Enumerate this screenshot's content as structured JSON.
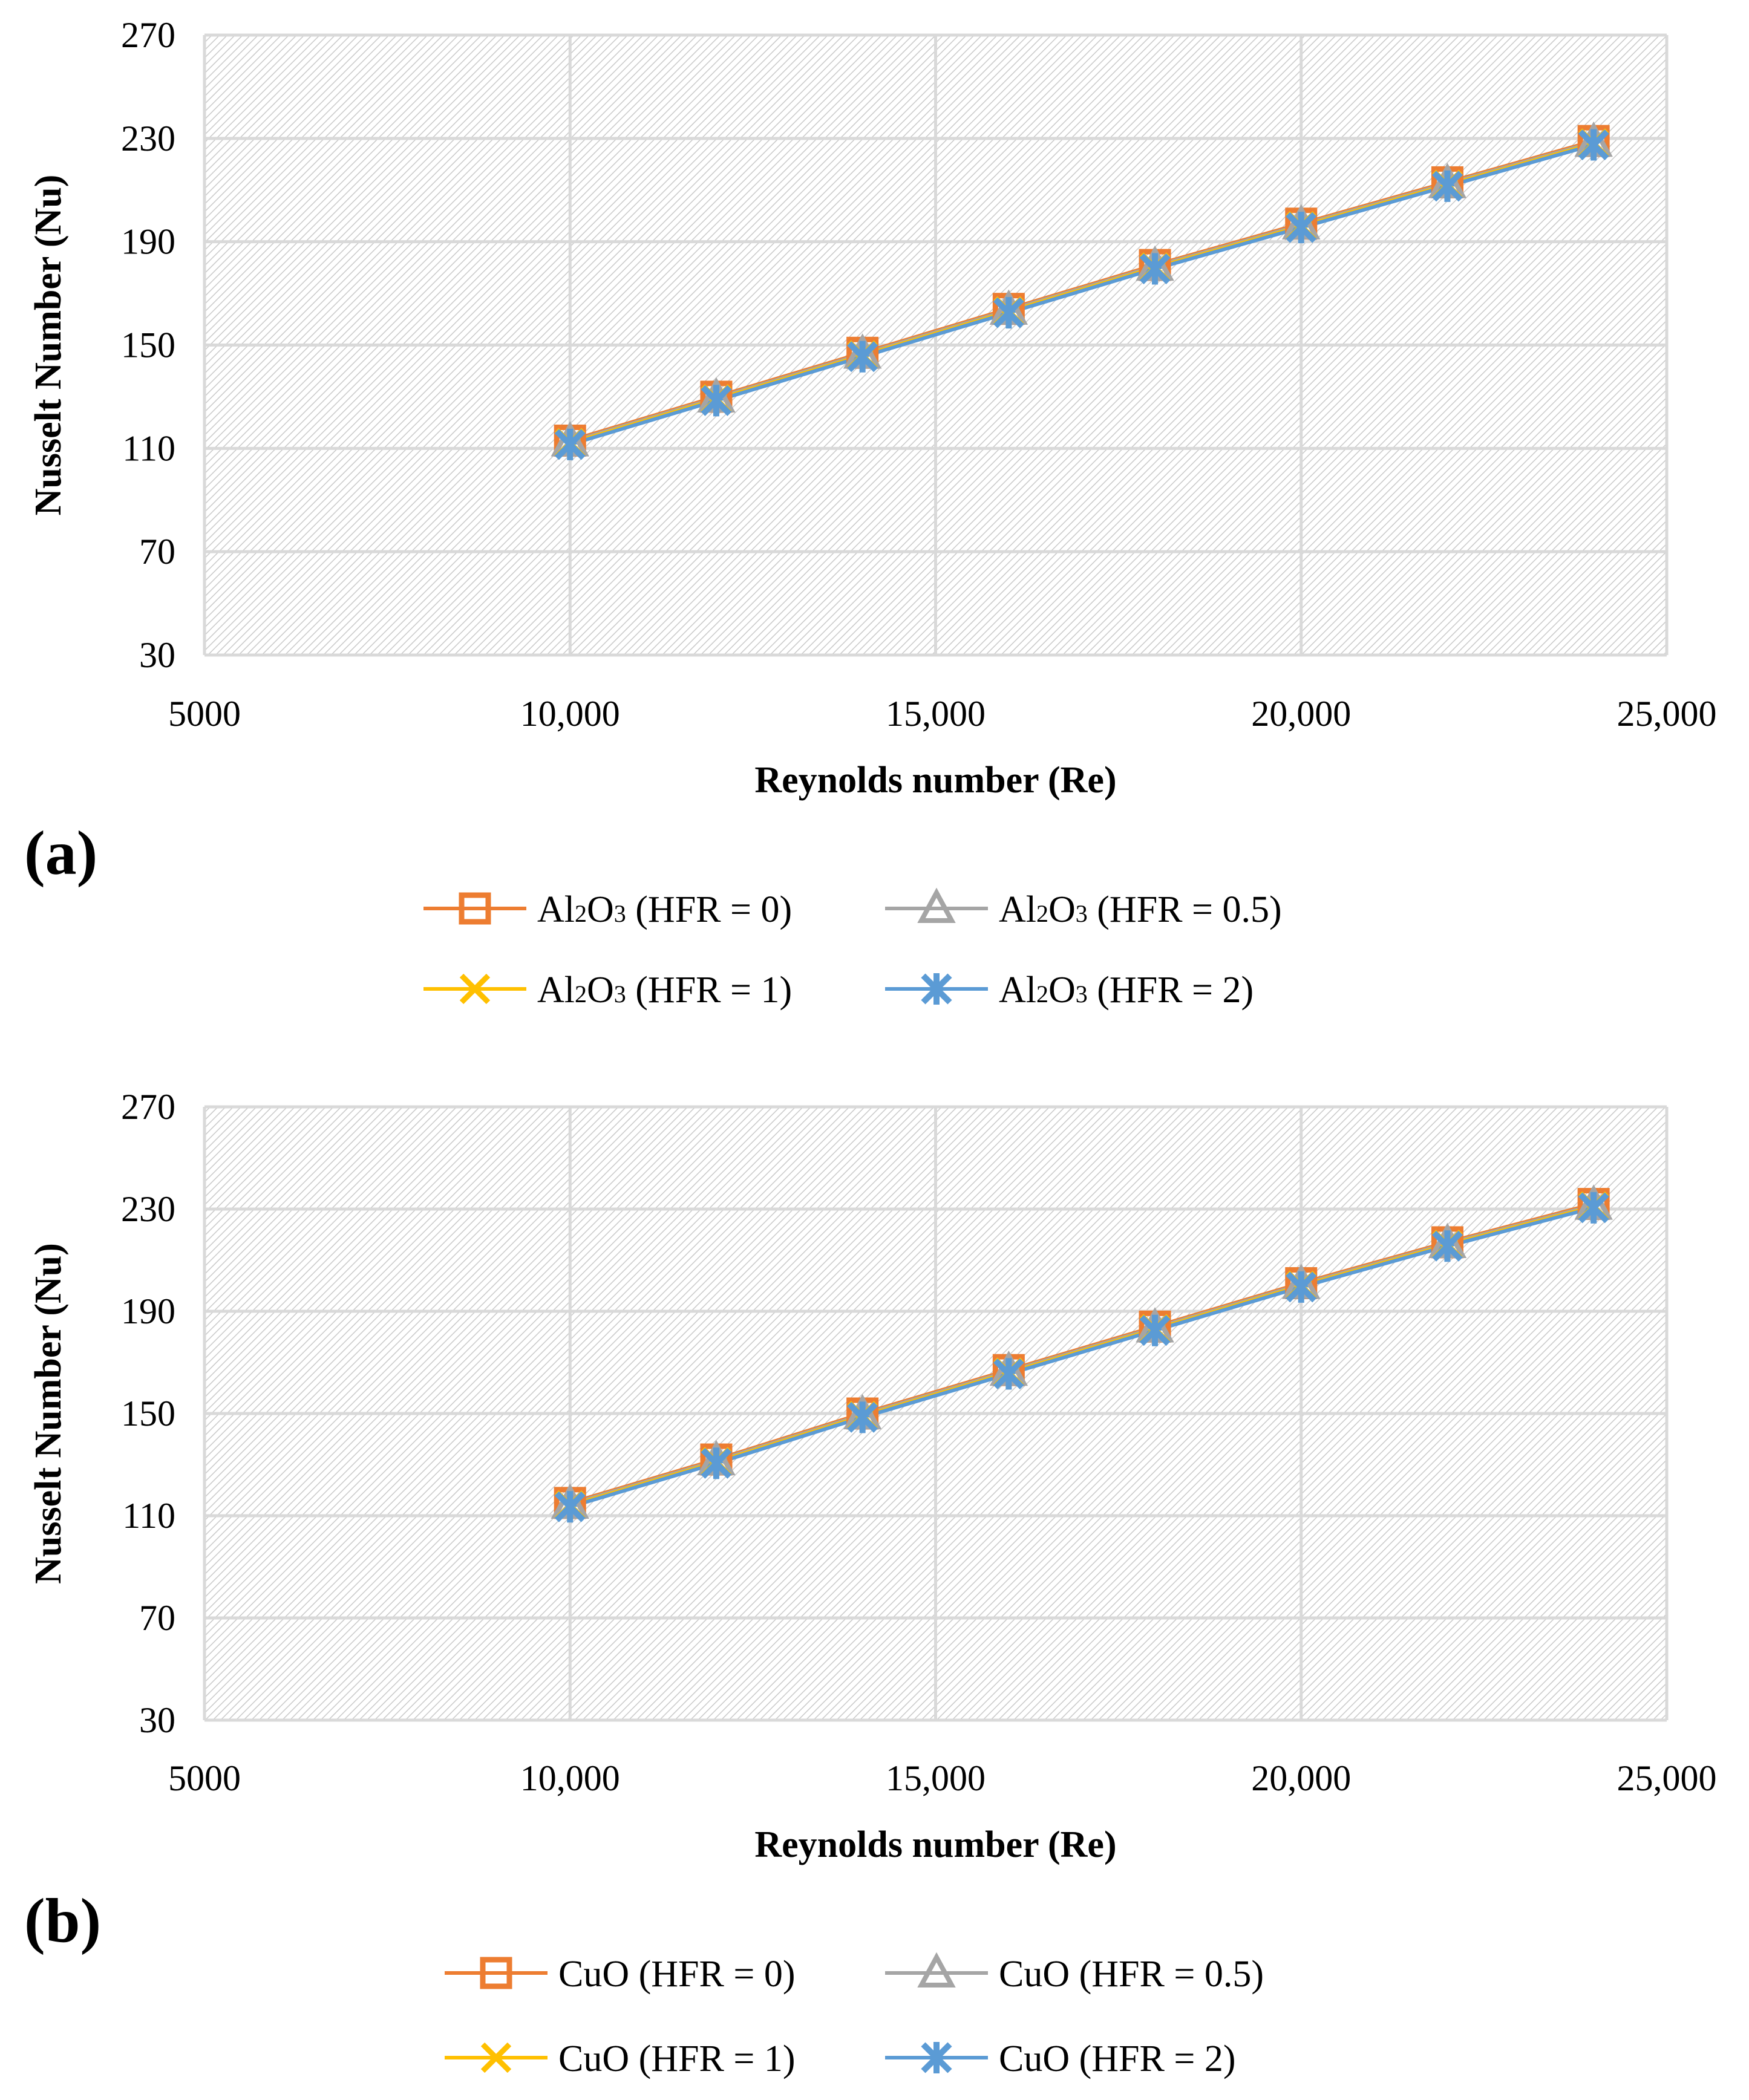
{
  "chart_data": [
    {
      "type": "line",
      "panel_label": "(a)",
      "xlabel": "Reynolds number (Re)",
      "ylabel": "Nusselt Number (Nu)",
      "xlim": [
        5000,
        25000
      ],
      "ylim": [
        30,
        270
      ],
      "x_ticks": [
        5000,
        10000,
        15000,
        20000,
        25000
      ],
      "x_tick_labels": [
        "5000",
        "10,000",
        "15,000",
        "20,000",
        "25,000"
      ],
      "y_ticks": [
        30,
        70,
        110,
        150,
        190,
        230,
        270
      ],
      "y_tick_labels": [
        "30",
        "70",
        "110",
        "150",
        "190",
        "230",
        "270"
      ],
      "grid": true,
      "legend_position": "bottom",
      "x": [
        10000,
        12000,
        14000,
        16000,
        18000,
        20000,
        22000,
        24000
      ],
      "series": [
        {
          "name": "Al₂O₃ (HFR = 0)",
          "name_parts": [
            "Al",
            "2",
            "O",
            "3",
            " (HFR = 0)"
          ],
          "color": "#ED7D31",
          "marker": "square",
          "values": [
            113,
            130,
            147,
            164,
            181,
            197,
            213,
            229
          ]
        },
        {
          "name": "Al₂O₃ (HFR = 0.5)",
          "name_parts": [
            "Al",
            "2",
            "O",
            "3",
            " (HFR = 0.5)"
          ],
          "color": "#A5A5A5",
          "marker": "triangle",
          "values": [
            112.5,
            129.5,
            146.5,
            163.5,
            180.5,
            196.5,
            212.5,
            228.5
          ]
        },
        {
          "name": "Al₂O₃ (HFR = 1)",
          "name_parts": [
            "Al",
            "2",
            "O",
            "3",
            " (HFR = 1)"
          ],
          "color": "#FFC000",
          "marker": "x",
          "values": [
            112,
            129,
            146,
            163,
            180,
            196,
            212,
            228
          ]
        },
        {
          "name": "Al₂O₃ (HFR = 2)",
          "name_parts": [
            "Al",
            "2",
            "O",
            "3",
            " (HFR = 2)"
          ],
          "color": "#5B9BD5",
          "marker": "star",
          "values": [
            111.5,
            128.5,
            145.5,
            162.5,
            179.5,
            195.5,
            211.5,
            227.5
          ]
        }
      ]
    },
    {
      "type": "line",
      "panel_label": "(b)",
      "xlabel": "Reynolds number (Re)",
      "ylabel": "Nusselt Number (Nu)",
      "xlim": [
        5000,
        25000
      ],
      "ylim": [
        30,
        270
      ],
      "x_ticks": [
        5000,
        10000,
        15000,
        20000,
        25000
      ],
      "x_tick_labels": [
        "5000",
        "10,000",
        "15,000",
        "20,000",
        "25,000"
      ],
      "y_ticks": [
        30,
        70,
        110,
        150,
        190,
        230,
        270
      ],
      "y_tick_labels": [
        "30",
        "70",
        "110",
        "150",
        "190",
        "230",
        "270"
      ],
      "grid": true,
      "legend_position": "bottom",
      "x": [
        10000,
        12000,
        14000,
        16000,
        18000,
        20000,
        22000,
        24000
      ],
      "series": [
        {
          "name": "CuO (HFR = 0)",
          "name_parts": [
            "CuO (HFR = 0)"
          ],
          "color": "#ED7D31",
          "marker": "square",
          "values": [
            115,
            132,
            150,
            167,
            184,
            201,
            217,
            232
          ]
        },
        {
          "name": "CuO (HFR = 0.5)",
          "name_parts": [
            "CuO (HFR = 0.5)"
          ],
          "color": "#A5A5A5",
          "marker": "triangle",
          "values": [
            114.5,
            131.5,
            149.5,
            166.5,
            183.5,
            200.5,
            216.5,
            231.5
          ]
        },
        {
          "name": "CuO (HFR = 1)",
          "name_parts": [
            "CuO (HFR = 1)"
          ],
          "color": "#FFC000",
          "marker": "x",
          "values": [
            114,
            131,
            149,
            166,
            183,
            200,
            216,
            231
          ]
        },
        {
          "name": "CuO (HFR = 2)",
          "name_parts": [
            "CuO (HFR = 2)"
          ],
          "color": "#5B9BD5",
          "marker": "star",
          "values": [
            113.5,
            130.5,
            148.5,
            165.5,
            182.5,
            199.5,
            215.5,
            230.5
          ]
        }
      ]
    }
  ]
}
